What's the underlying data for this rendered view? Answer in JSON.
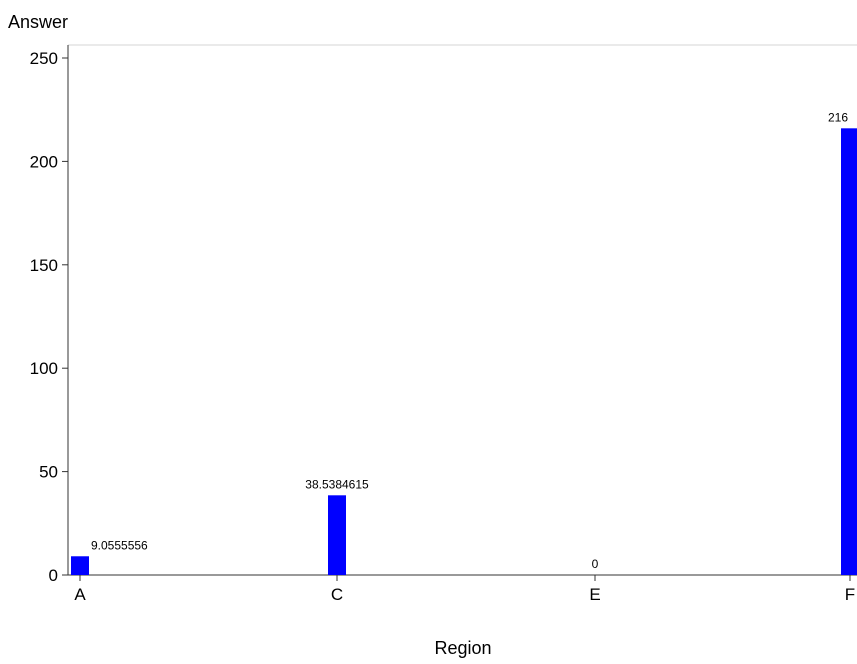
{
  "chart_data": {
    "type": "bar",
    "title": "",
    "xlabel": "Region",
    "ylabel": "Answer",
    "categories": [
      "A",
      "C",
      "E",
      "F"
    ],
    "values": [
      9.0555556,
      38.5384615,
      0,
      216
    ],
    "data_labels": [
      "9.0555556",
      "38.5384615",
      "0",
      "216"
    ],
    "ylim": [
      0,
      250
    ],
    "yticks": [
      0,
      50,
      100,
      150,
      200,
      250
    ],
    "ytick_labels": [
      "0",
      "50",
      "100",
      "150",
      "200",
      "250"
    ],
    "grid": false,
    "bar_color": "#0000ff"
  }
}
